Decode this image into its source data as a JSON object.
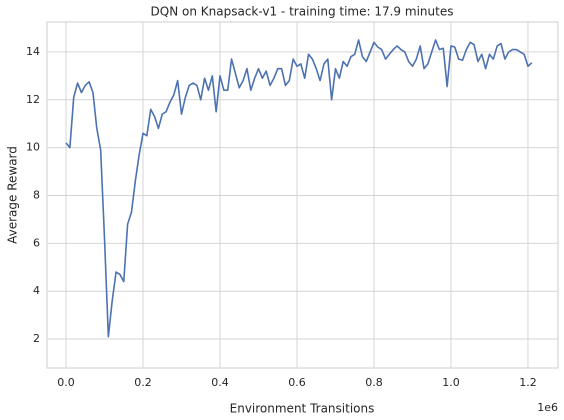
{
  "chart_data": {
    "type": "line",
    "title": "DQN on Knapsack-v1 - training time: 17.9 minutes",
    "xlabel": "Environment Transitions",
    "ylabel": "Average Reward",
    "x_offset_label": "1e6",
    "color": "#4c72b0",
    "grid": true,
    "x": [
      0,
      10000,
      20000,
      30000,
      40000,
      50000,
      60000,
      70000,
      80000,
      90000,
      100000,
      110000,
      120000,
      130000,
      140000,
      150000,
      160000,
      170000,
      180000,
      190000,
      200000,
      210000,
      220000,
      230000,
      240000,
      250000,
      260000,
      270000,
      280000,
      290000,
      300000,
      310000,
      320000,
      330000,
      340000,
      350000,
      360000,
      370000,
      380000,
      390000,
      400000,
      410000,
      420000,
      430000,
      440000,
      450000,
      460000,
      470000,
      480000,
      490000,
      500000,
      510000,
      520000,
      530000,
      540000,
      550000,
      560000,
      570000,
      580000,
      590000,
      600000,
      610000,
      620000,
      630000,
      640000,
      650000,
      660000,
      670000,
      680000,
      690000,
      700000,
      710000,
      720000,
      730000,
      740000,
      750000,
      760000,
      770000,
      780000,
      790000,
      800000,
      810000,
      820000,
      830000,
      840000,
      850000,
      860000,
      870000,
      880000,
      890000,
      900000,
      910000,
      920000,
      930000,
      940000,
      950000,
      960000,
      970000,
      980000,
      990000,
      1000000,
      1010000,
      1020000,
      1030000,
      1040000,
      1050000,
      1060000,
      1070000,
      1080000,
      1090000,
      1100000,
      1110000,
      1120000,
      1130000,
      1140000,
      1150000,
      1160000,
      1170000,
      1180000,
      1190000,
      1200000,
      1210000
    ],
    "values": [
      10.2,
      10.0,
      12.1,
      12.7,
      12.3,
      12.6,
      12.75,
      12.3,
      10.8,
      9.9,
      6.2,
      2.1,
      3.6,
      4.8,
      4.7,
      4.4,
      6.8,
      7.3,
      8.6,
      9.7,
      10.6,
      10.5,
      11.6,
      11.3,
      10.8,
      11.4,
      11.5,
      11.9,
      12.2,
      12.8,
      11.4,
      12.1,
      12.6,
      12.7,
      12.6,
      12.0,
      12.9,
      12.4,
      13.0,
      11.5,
      13.0,
      12.4,
      12.4,
      13.7,
      13.1,
      12.5,
      12.8,
      13.3,
      12.4,
      12.9,
      13.3,
      12.9,
      13.2,
      12.6,
      12.9,
      13.3,
      13.3,
      12.6,
      12.8,
      13.7,
      13.4,
      13.5,
      12.9,
      13.9,
      13.7,
      13.3,
      12.8,
      13.5,
      13.7,
      12.0,
      13.3,
      12.9,
      13.6,
      13.4,
      13.8,
      13.9,
      14.5,
      13.8,
      13.6,
      14.0,
      14.4,
      14.2,
      14.1,
      13.7,
      13.9,
      14.1,
      14.25,
      14.1,
      14.0,
      13.6,
      13.4,
      13.7,
      14.25,
      13.3,
      13.5,
      14.0,
      14.5,
      14.1,
      14.15,
      12.55,
      14.25,
      14.2,
      13.7,
      13.65,
      14.1,
      14.4,
      14.3,
      13.6,
      13.9,
      13.3,
      13.9,
      13.7,
      14.25,
      14.35,
      13.7,
      14.0,
      14.1,
      14.1,
      14.0,
      13.9,
      13.4,
      13.55
    ],
    "xlim": [
      -49400,
      1278000
    ],
    "xticks": [
      {
        "value": 0,
        "label": "0.0"
      },
      {
        "value": 200000,
        "label": "0.2"
      },
      {
        "value": 400000,
        "label": "0.4"
      },
      {
        "value": 600000,
        "label": "0.6"
      },
      {
        "value": 800000,
        "label": "0.8"
      },
      {
        "value": 1000000,
        "label": "1.0"
      },
      {
        "value": 1200000,
        "label": "1.2"
      }
    ],
    "ylim": [
      0.79,
      15.25
    ],
    "yticks": [
      2,
      4,
      6,
      8,
      10,
      12,
      14
    ]
  }
}
